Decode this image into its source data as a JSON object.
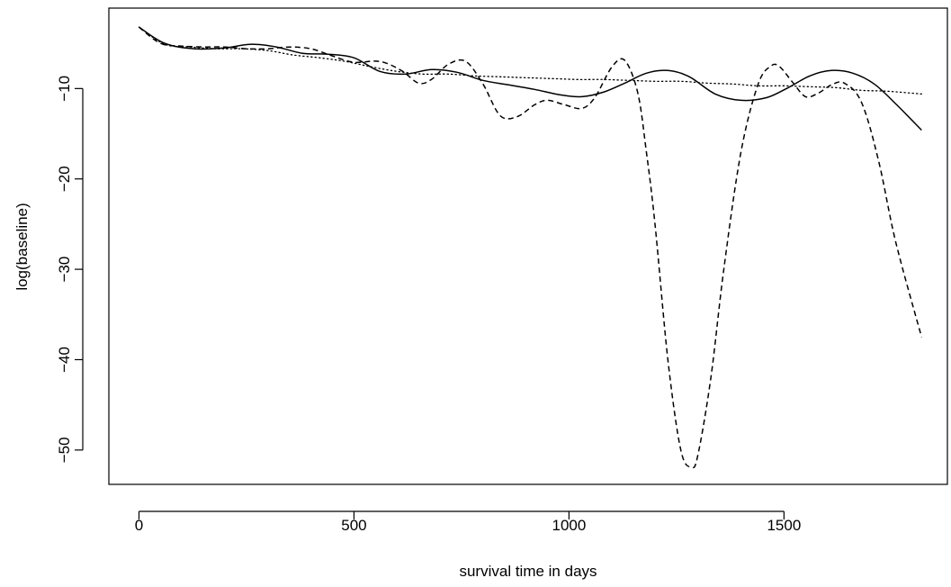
{
  "chart_data": {
    "type": "line",
    "xlabel": "survival time in days",
    "ylabel": "log(baseline)",
    "xlim": [
      -70,
      1880
    ],
    "ylim": [
      -53.8,
      -1.1
    ],
    "xticks": [
      0,
      500,
      1000,
      1500
    ],
    "yticks": [
      -10,
      -20,
      -30,
      -40,
      -50
    ],
    "ytick_labels": [
      "−10",
      "−20",
      "−30",
      "−40",
      "−50"
    ],
    "grid": false,
    "series": [
      {
        "style": "solid",
        "color": "#000000",
        "x": [
          0,
          60,
          130,
          200,
          260,
          320,
          380,
          440,
          500,
          560,
          620,
          680,
          740,
          800,
          860,
          920,
          980,
          1030,
          1080,
          1130,
          1180,
          1230,
          1280,
          1340,
          1400,
          1460,
          1510,
          1560,
          1610,
          1660,
          1710,
          1760,
          1820
        ],
        "y": [
          -3.2,
          -5.0,
          -5.6,
          -5.5,
          -5.1,
          -5.4,
          -6.1,
          -6.2,
          -6.6,
          -8.1,
          -8.4,
          -7.9,
          -8.2,
          -9.1,
          -9.6,
          -10.1,
          -10.7,
          -10.9,
          -10.4,
          -9.4,
          -8.3,
          -8.0,
          -8.7,
          -10.6,
          -11.3,
          -11.0,
          -9.9,
          -8.6,
          -8.0,
          -8.3,
          -9.5,
          -11.7,
          -14.6
        ]
      },
      {
        "style": "dashed",
        "color": "#000000",
        "x": [
          0,
          50,
          100,
          150,
          200,
          250,
          300,
          350,
          400,
          450,
          500,
          560,
          610,
          650,
          680,
          720,
          760,
          800,
          840,
          880,
          920,
          950,
          990,
          1030,
          1060,
          1100,
          1130,
          1160,
          1180,
          1200,
          1230,
          1260,
          1285,
          1300,
          1330,
          1360,
          1400,
          1440,
          1470,
          1490,
          1520,
          1550,
          1580,
          1610,
          1640,
          1680,
          1720,
          1760,
          1820
        ],
        "y": [
          -3.2,
          -5.0,
          -5.3,
          -5.4,
          -5.4,
          -5.6,
          -5.6,
          -5.4,
          -5.6,
          -6.4,
          -7.1,
          -7.0,
          -8.0,
          -9.4,
          -9.0,
          -7.3,
          -7.0,
          -9.5,
          -13.0,
          -13.1,
          -11.8,
          -11.3,
          -11.8,
          -12.2,
          -11.0,
          -7.6,
          -6.9,
          -10.5,
          -17.0,
          -25.0,
          -40.0,
          -50.0,
          -51.9,
          -50.5,
          -42.0,
          -30.0,
          -17.0,
          -9.5,
          -7.5,
          -7.6,
          -9.3,
          -10.9,
          -10.5,
          -9.6,
          -9.4,
          -11.5,
          -18.0,
          -27.0,
          -37.5
        ]
      },
      {
        "style": "dotted",
        "color": "#000000",
        "x": [
          0,
          60,
          120,
          180,
          240,
          300,
          360,
          420,
          480,
          540,
          600,
          660,
          720,
          780,
          840,
          900,
          960,
          1020,
          1080,
          1140,
          1200,
          1260,
          1320,
          1380,
          1440,
          1500,
          1560,
          1620,
          1680,
          1740,
          1820
        ],
        "y": [
          -3.2,
          -5.1,
          -5.4,
          -5.6,
          -5.6,
          -5.8,
          -6.3,
          -6.6,
          -7.0,
          -7.6,
          -8.1,
          -8.4,
          -8.4,
          -8.6,
          -8.7,
          -8.8,
          -8.9,
          -9.0,
          -9.0,
          -9.1,
          -9.2,
          -9.2,
          -9.4,
          -9.5,
          -9.7,
          -9.7,
          -9.8,
          -9.9,
          -10.2,
          -10.3,
          -10.6
        ]
      }
    ]
  }
}
